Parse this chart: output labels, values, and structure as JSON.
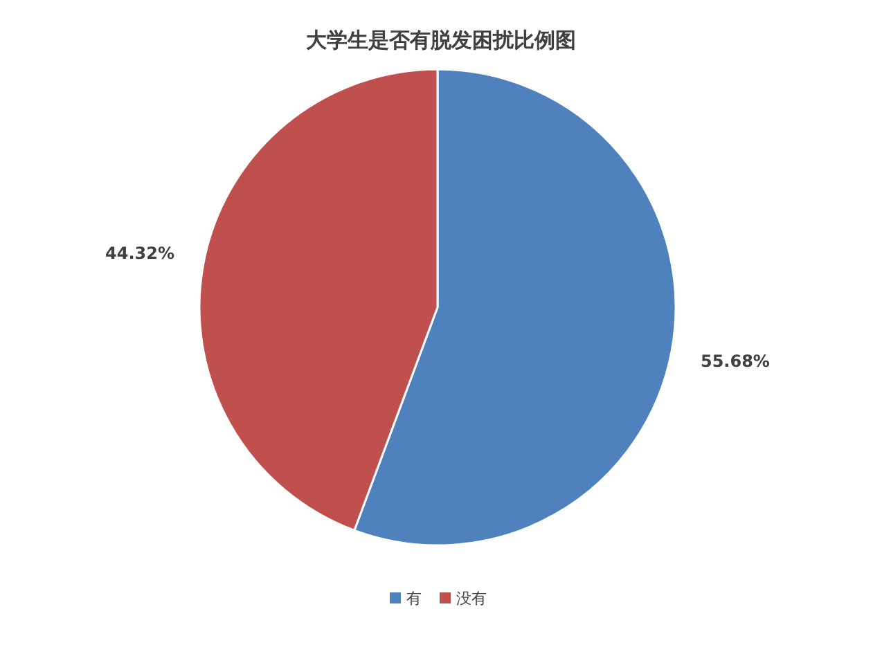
{
  "chart_data": {
    "type": "pie",
    "title": "大学生是否有脱发困扰比例图",
    "categories": [
      "有",
      "没有"
    ],
    "values": [
      55.68,
      44.32
    ],
    "colors": [
      "#4f81bd",
      "#c0504d"
    ],
    "value_labels": [
      "55.68%",
      "44.32%"
    ],
    "legend": "bottom"
  }
}
